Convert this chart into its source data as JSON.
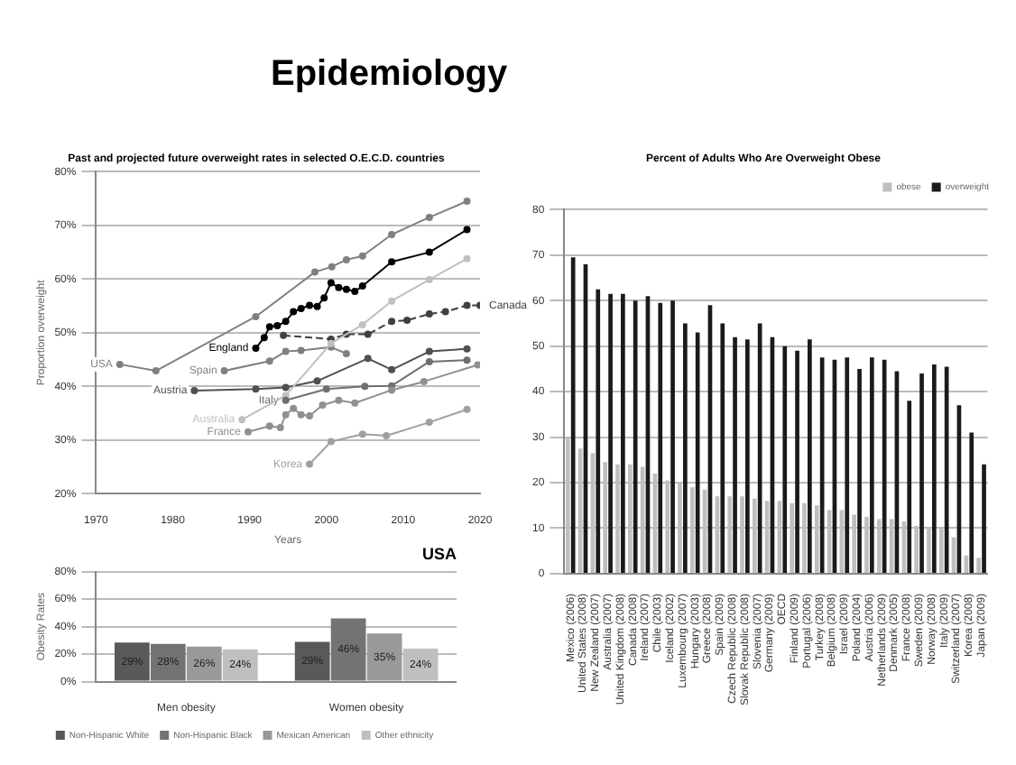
{
  "chart_data": [
    {
      "type": "other",
      "title": "Epidemiology"
    },
    {
      "type": "line",
      "title": "Past and projected future overweight rates in selected O.E.C.D. countries",
      "xlabel": "Years",
      "ylabel": "Proportion overweight",
      "xlim": [
        1970,
        2020
      ],
      "xticks": [
        1970,
        1980,
        1990,
        2000,
        2010,
        2020
      ],
      "ylim": [
        20,
        80
      ],
      "yticks": [
        {
          "value": 20,
          "label": "20%"
        },
        {
          "value": 30,
          "label": "30%"
        },
        {
          "value": 40,
          "label": "40%"
        },
        {
          "value": 50,
          "label": "50%"
        },
        {
          "value": 60,
          "label": "60%"
        },
        {
          "value": 70,
          "label": "70%"
        },
        {
          "value": 80,
          "label": "80%"
        }
      ],
      "grid": "y",
      "legend": false,
      "marker": "circle",
      "series": [
        {
          "name": "USA",
          "color": "#808080",
          "x": [
            1973.1,
            1977.8,
            1990.8,
            1998.5,
            2000.7,
            2002.6,
            2004.7,
            2008.5,
            2013.4,
            2018.3
          ],
          "values": [
            44.1,
            42.9,
            53,
            61.3,
            62.3,
            63.6,
            64.3,
            68.3,
            71.5,
            74.5
          ]
        },
        {
          "name": "England",
          "color": "#000000",
          "x": [
            1990.8,
            1991.9,
            1992.6,
            1993.6,
            1994.7,
            1995.7,
            1996.7,
            1997.8,
            1998.8,
            1999.7,
            2000.6,
            2001.6,
            2002.6,
            2003.7,
            2004.7,
            2008.5,
            2013.4,
            2018.3
          ],
          "values": [
            47.1,
            49.1,
            51.1,
            51.3,
            52.1,
            53.9,
            54.5,
            55.1,
            54.9,
            56.5,
            59.3,
            58.4,
            58.1,
            57.7,
            58.7,
            63.2,
            65,
            69.2
          ]
        },
        {
          "name": "Canada",
          "color": "#404040",
          "line_style": "dashed",
          "x": [
            1994.4,
            2000.6,
            2002.6,
            2005.4,
            2008.5,
            2010.5,
            2013.4,
            2015.5,
            2018.3,
            2020
          ],
          "values": [
            49.5,
            48.8,
            49.7,
            49.7,
            52.1,
            52.3,
            53.5,
            53.9,
            55.1,
            55.1
          ]
        },
        {
          "name": "Spain",
          "color": "#808080",
          "x": [
            1986.7,
            1992.6,
            1994.7,
            1996.7,
            2000.6,
            2002.6
          ],
          "values": [
            42.9,
            44.7,
            46.5,
            46.7,
            47.3,
            46.1
          ]
        },
        {
          "name": "Austria",
          "color": "#505050",
          "x": [
            1982.8,
            1990.8,
            1994.7,
            1998.8,
            2005.4,
            2008.5,
            2013.4,
            2018.3
          ],
          "values": [
            39.2,
            39.5,
            39.8,
            41,
            45.2,
            43.1,
            46.5,
            47
          ]
        },
        {
          "name": "Australia",
          "color": "#c0c0c0",
          "x": [
            1989,
            1994.7,
            2000.6,
            2004.7,
            2008.5,
            2013.4,
            2018.3
          ],
          "values": [
            33.8,
            38.3,
            48,
            51.5,
            55.9,
            59.9,
            63.8
          ]
        },
        {
          "name": "Italy",
          "color": "#707070",
          "x": [
            1994.7,
            2000,
            2005,
            2008.5,
            2013.4,
            2018.3
          ],
          "values": [
            37.4,
            39.5,
            40,
            40.1,
            44.6,
            44.9
          ]
        },
        {
          "name": "France",
          "color": "#909090",
          "x": [
            1989.8,
            1992.6,
            1994,
            1994.7,
            1995.7,
            1996.7,
            1997.8,
            1999.5,
            2001.6,
            2003.7,
            2008.5,
            2012.7,
            2019.7
          ],
          "values": [
            31.5,
            32.6,
            32.3,
            34.7,
            35.9,
            34.7,
            34.5,
            36.5,
            37.4,
            36.9,
            39.3,
            40.9,
            44
          ]
        },
        {
          "name": "Korea",
          "color": "#a0a0a0",
          "x": [
            1997.8,
            2000.6,
            2004.7,
            2007.8,
            2013.4,
            2018.3
          ],
          "values": [
            25.5,
            29.7,
            31.1,
            30.8,
            33.3,
            35.7
          ]
        }
      ]
    },
    {
      "type": "bar",
      "title": "Percent of Adults Who Are Overweight Obese",
      "categories": [
        "Mexico (2006)",
        "United States (2008)",
        "New Zealand (2007)",
        "Australia (2007)",
        "United Kingdom (2008)",
        "Canada (2008)",
        "Ireland (2007)",
        "Chile (2003)",
        "Iceland (2002)",
        "Luxembourg (2007)",
        "Hungary (2003)",
        "Greece (2008)",
        "Spain (2009)",
        "Czech Republic (2008)",
        "Slovak Republic (2008)",
        "Slovenia (2007)",
        "Germany (2009)",
        "OECD",
        "Finland (2009)",
        "Portugal (2006)",
        "Turkey (2008)",
        "Belgium (2008)",
        "Israel (2009)",
        "Poland (2004)",
        "Austria (2006)",
        "Netherlands (2009)",
        "Denmark (2005)",
        "France (2008)",
        "Sweden (2009)",
        "Norway (2008)",
        "Italy (2009)",
        "Switzerland (2007)",
        "Korea (2008)",
        "Japan (2009)"
      ],
      "ylim": [
        0,
        80
      ],
      "yticks": [
        0,
        10,
        20,
        30,
        40,
        50,
        60,
        70,
        80
      ],
      "grid": "y",
      "legend": "top right",
      "series": [
        {
          "name": "obese",
          "color": "#bfbfbf",
          "values": [
            30,
            27.5,
            26.5,
            24.5,
            24,
            24,
            23.5,
            22,
            20.5,
            20,
            19,
            18.5,
            17,
            17,
            17,
            16.5,
            16,
            16,
            15.5,
            15.5,
            15,
            14,
            14,
            13,
            12.5,
            12,
            12,
            11.5,
            10.5,
            10,
            10,
            8,
            4,
            3.5
          ]
        },
        {
          "name": "overweight",
          "color": "#1a1a1a",
          "values": [
            69.5,
            68,
            62.5,
            61.5,
            61.5,
            60,
            61,
            59.5,
            60,
            55,
            53,
            59,
            55,
            52,
            51.5,
            55,
            52,
            50,
            49,
            51.5,
            47.5,
            47,
            47.5,
            45,
            47.5,
            47,
            44.5,
            38,
            44,
            46,
            45.5,
            37,
            31,
            24
          ]
        }
      ]
    },
    {
      "type": "bar",
      "title": "USA",
      "ylabel": "Obesity Rates",
      "categories": [
        "Men obesity",
        "Women obesity"
      ],
      "ylim": [
        0,
        80
      ],
      "yticks": [
        {
          "value": 0,
          "label": "0%"
        },
        {
          "value": 20,
          "label": "20%"
        },
        {
          "value": 40,
          "label": "40%"
        },
        {
          "value": 60,
          "label": "60%"
        },
        {
          "value": 80,
          "label": "80%"
        }
      ],
      "grid": "y",
      "legend": "bottom",
      "series": [
        {
          "name": "Non-Hispanic White",
          "color": "#595959",
          "values": [
            28.5,
            29
          ],
          "value_labels": [
            "29%",
            "29%"
          ]
        },
        {
          "name": "Non-Hispanic Black",
          "color": "#737373",
          "values": [
            27.5,
            46
          ],
          "value_labels": [
            "28%",
            "46%"
          ]
        },
        {
          "name": "Mexican American",
          "color": "#999999",
          "values": [
            25.5,
            35
          ],
          "value_labels": [
            "26%",
            "35%"
          ]
        },
        {
          "name": "Other ethnicity",
          "color": "#bfbfbf",
          "values": [
            23.5,
            24
          ],
          "value_labels": [
            "24%",
            "24%"
          ]
        }
      ]
    }
  ]
}
